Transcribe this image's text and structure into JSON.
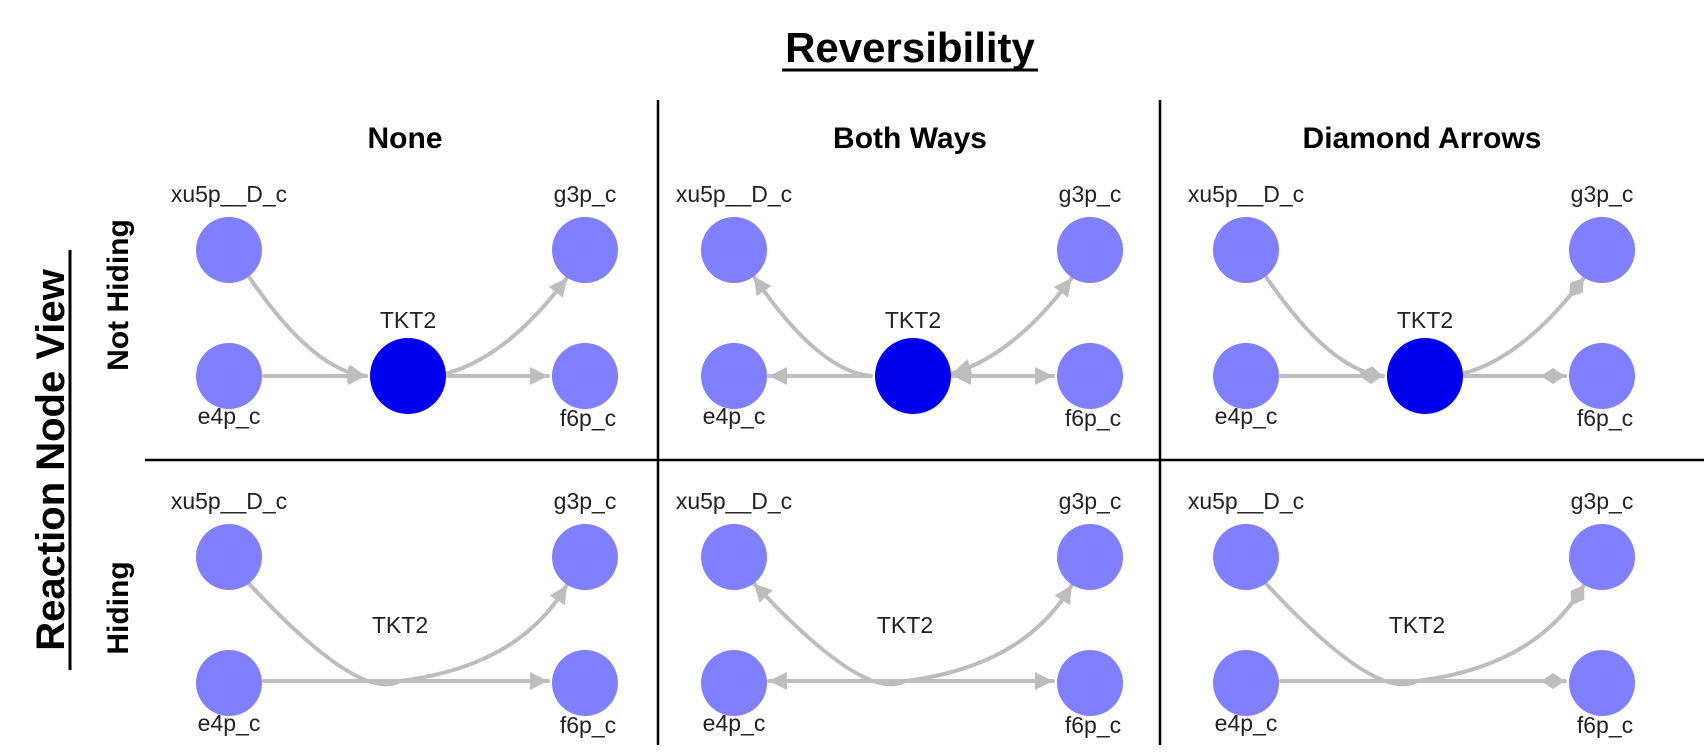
{
  "title": "Reversibility",
  "row_axis_label": "Reaction Node View",
  "columns": [
    {
      "label": "None",
      "arrow_style": "none"
    },
    {
      "label": "Both Ways",
      "arrow_style": "both-ways"
    },
    {
      "label": "Diamond Arrows",
      "arrow_style": "diamond"
    }
  ],
  "rows": [
    {
      "label": "Not Hiding",
      "hide_reaction_node": false
    },
    {
      "label": "Hiding",
      "hide_reaction_node": true
    }
  ],
  "network": {
    "reaction": "TKT2",
    "substrates": [
      "xu5p__D_c",
      "e4p_c"
    ],
    "products": [
      "g3p_c",
      "f6p_c"
    ]
  },
  "colors": {
    "metabolite_node": "#8080ff",
    "reaction_node": "#0000ee",
    "edge": "#bdbdbd",
    "divider": "#000000"
  }
}
